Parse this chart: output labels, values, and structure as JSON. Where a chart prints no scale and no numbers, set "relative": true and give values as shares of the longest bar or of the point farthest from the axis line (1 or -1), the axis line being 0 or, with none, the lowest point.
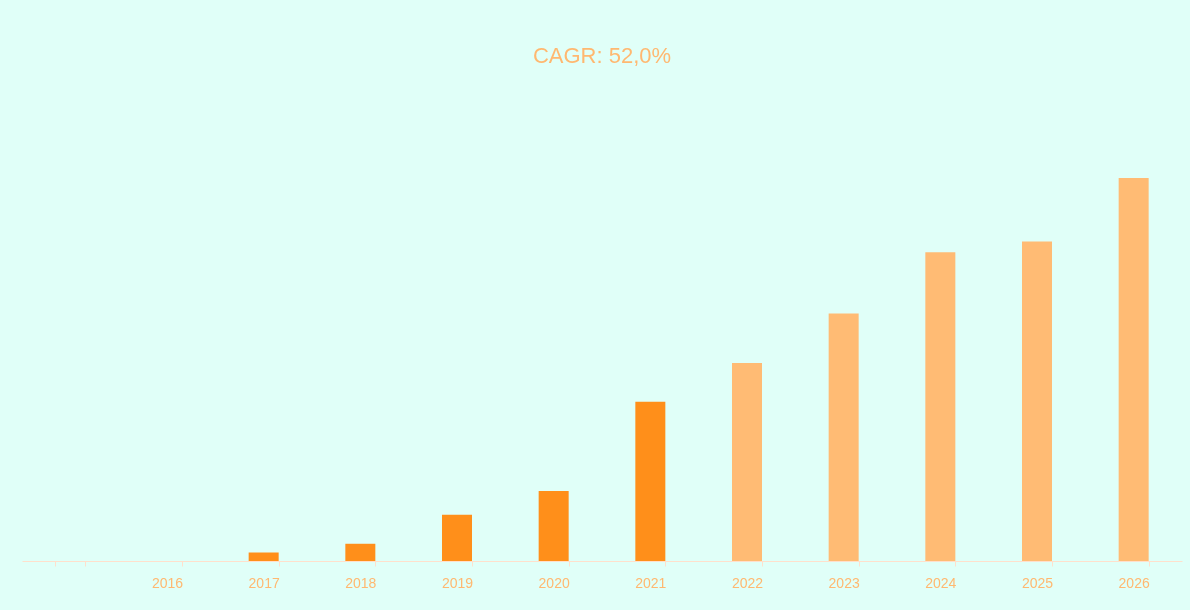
{
  "chart_data": {
    "type": "bar",
    "title": "CAGR: 52,0%",
    "relative": true,
    "grid": false,
    "categories": [
      null,
      "2016",
      "2017",
      "2018",
      "2019",
      "2020",
      "2021",
      "2022",
      "2023",
      "2024",
      "2025",
      "2026"
    ],
    "values": [
      null,
      0,
      0.022,
      0.045,
      0.121,
      0.183,
      0.416,
      0.517,
      0.646,
      0.806,
      0.834,
      1
    ],
    "colors": [
      "#ff8f1a",
      "#ff8f1a",
      "#ff8f1a",
      "#ff8f1a",
      "#ff8f1a",
      "#ff8f1a",
      "#ff8f1a",
      "#ffbb74",
      "#ffbb74",
      "#ffbb74",
      "#ffbb74",
      "#ffbb74"
    ]
  }
}
